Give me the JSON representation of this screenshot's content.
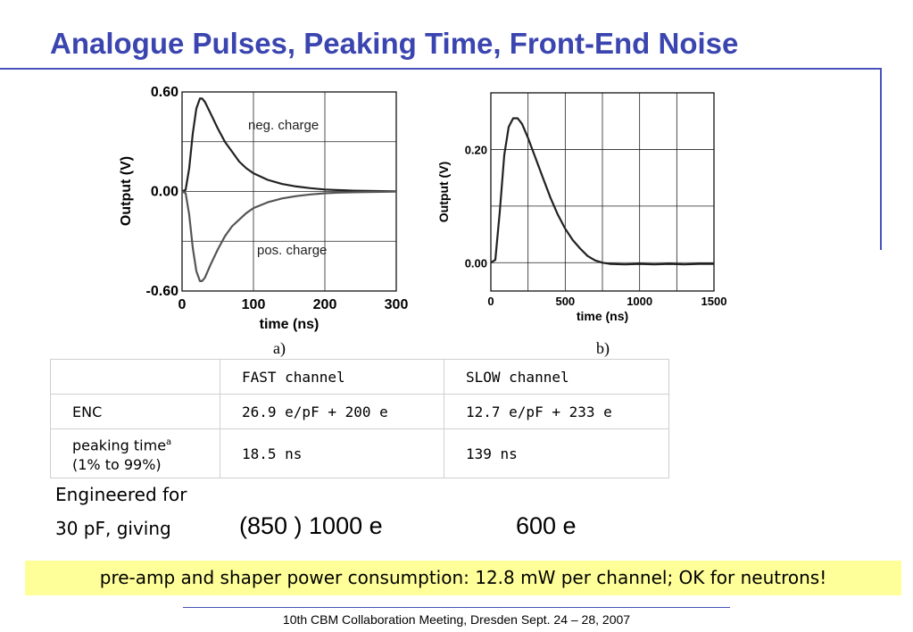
{
  "slide": {
    "title": "Analogue Pulses, Peaking Time, Front-End Noise",
    "footer": "10th CBM Collaboration Meeting, Dresden Sept. 24 – 28, 2007",
    "accent_color": "#3b45b0",
    "banner_color": "#ffff99"
  },
  "chart_data": [
    {
      "type": "line",
      "panel_label": "a)",
      "xlabel": "time (ns)",
      "ylabel": "Output (V)",
      "xlim": [
        0,
        300
      ],
      "ylim": [
        -0.6,
        0.6
      ],
      "x_tick_labels": [
        "0",
        "100",
        "200",
        "300"
      ],
      "y_tick_labels": [
        "-0.60",
        "0.00",
        "0.60"
      ],
      "grid": true,
      "annotations": [
        "neg. charge",
        "pos. charge"
      ],
      "series": [
        {
          "x": [
            0,
            5,
            10,
            15,
            20,
            25,
            28,
            32,
            40,
            50,
            60,
            70,
            80,
            90,
            100,
            120,
            140,
            160,
            180,
            200,
            220,
            240,
            260,
            280,
            300
          ],
          "y": [
            0,
            0.01,
            0.14,
            0.35,
            0.5,
            0.56,
            0.56,
            0.54,
            0.47,
            0.38,
            0.3,
            0.24,
            0.18,
            0.14,
            0.11,
            0.07,
            0.045,
            0.03,
            0.02,
            0.012,
            0.008,
            0.005,
            0.003,
            0.002,
            0.001
          ]
        },
        {
          "x": [
            0,
            5,
            10,
            15,
            20,
            25,
            28,
            32,
            40,
            50,
            60,
            70,
            80,
            90,
            100,
            120,
            140,
            160,
            180,
            200,
            220,
            240,
            260,
            280,
            300
          ],
          "y": [
            0,
            -0.01,
            -0.14,
            -0.34,
            -0.48,
            -0.54,
            -0.54,
            -0.52,
            -0.44,
            -0.35,
            -0.27,
            -0.21,
            -0.17,
            -0.13,
            -0.1,
            -0.065,
            -0.042,
            -0.028,
            -0.018,
            -0.011,
            -0.007,
            -0.005,
            -0.003,
            -0.002,
            -0.001
          ]
        }
      ]
    },
    {
      "type": "line",
      "panel_label": "b)",
      "xlabel": "time (ns)",
      "ylabel": "Output (V)",
      "xlim": [
        0,
        1500
      ],
      "ylim": [
        -0.05,
        0.3
      ],
      "x_tick_labels": [
        "0",
        "500",
        "1000",
        "1500"
      ],
      "y_tick_labels": [
        "0.00",
        "0.20"
      ],
      "grid": true,
      "series": [
        {
          "x": [
            0,
            30,
            60,
            90,
            120,
            150,
            180,
            210,
            250,
            300,
            350,
            400,
            450,
            500,
            550,
            600,
            650,
            700,
            750,
            800,
            900,
            1000,
            1100,
            1200,
            1300,
            1400,
            1500
          ],
          "y": [
            0,
            0.005,
            0.09,
            0.19,
            0.24,
            0.255,
            0.255,
            0.245,
            0.22,
            0.185,
            0.15,
            0.115,
            0.085,
            0.06,
            0.04,
            0.025,
            0.012,
            0.004,
            0.0,
            -0.002,
            -0.003,
            -0.002,
            -0.003,
            -0.002,
            -0.003,
            -0.002,
            -0.002
          ]
        }
      ]
    }
  ],
  "table": {
    "headers": [
      "",
      "FAST channel",
      "SLOW channel"
    ],
    "rows": [
      {
        "label": "ENC",
        "fast": "26.9 e/pF + 200 e",
        "slow": "12.7 e/pF + 233 e"
      },
      {
        "label_line1": "peaking time",
        "label_sup": "a",
        "label_line2": "(1% to 99%)",
        "fast": "18.5 ns",
        "slow": "139 ns"
      }
    ]
  },
  "engineered": {
    "line1": "Engineered for",
    "line2": "30 pF, giving",
    "fast_value": "(850 ) 1000 e",
    "slow_value": "600 e"
  },
  "banner": {
    "text": "pre-amp and shaper power consumption: 12.8 mW per channel; OK for neutrons!"
  }
}
